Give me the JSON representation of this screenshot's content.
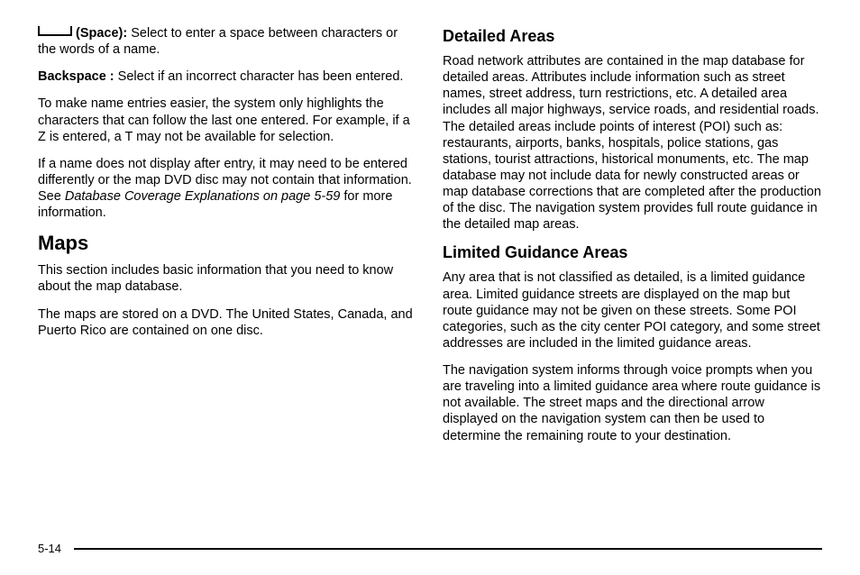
{
  "left": {
    "space": {
      "label": "(Space):",
      "text": "Select to enter a space between characters or the words of a name."
    },
    "backspace": {
      "label": "Backspace :",
      "text": "Select if an incorrect character has been entered."
    },
    "p3": "To make name entries easier, the system only highlights the characters that can follow the last one entered. For example, if a Z is entered, a T may not be available for selection.",
    "p4a": "If a name does not display after entry, it may need to be entered differently or the map DVD disc may not contain that information. See ",
    "p4i": "Database Coverage Explanations on page 5‑59",
    "p4b": " for more information.",
    "maps_h": "Maps",
    "maps_p1": "This section includes basic information that you need to know about the map database.",
    "maps_p2": "The maps are stored on a DVD. The United States, Canada, and Puerto Rico are contained on one disc."
  },
  "right": {
    "det_h": "Detailed Areas",
    "det_p": "Road network attributes are contained in the map database for detailed areas. Attributes include information such as street names, street address, turn restrictions, etc. A detailed area includes all major highways, service roads, and residential roads. The detailed areas include points of interest (POI) such as: restaurants, airports, banks, hospitals, police stations, gas stations, tourist attractions, historical monuments, etc. The map database may not include data for newly constructed areas or map database corrections that are completed after the production of the disc. The navigation system provides full route guidance in the detailed map areas.",
    "lim_h": "Limited Guidance Areas",
    "lim_p1": "Any area that is not classified as detailed, is a limited guidance area. Limited guidance streets are displayed on the map but route guidance may not be given on these streets. Some POI categories, such as the city center POI category, and some street addresses are included in the limited guidance areas.",
    "lim_p2": "The navigation system informs through voice prompts when you are traveling into a limited guidance area where route guidance is not available. The street maps and the directional arrow displayed on the navigation system can then be used to determine the remaining route to your destination."
  },
  "footer": {
    "page": "5-14"
  }
}
